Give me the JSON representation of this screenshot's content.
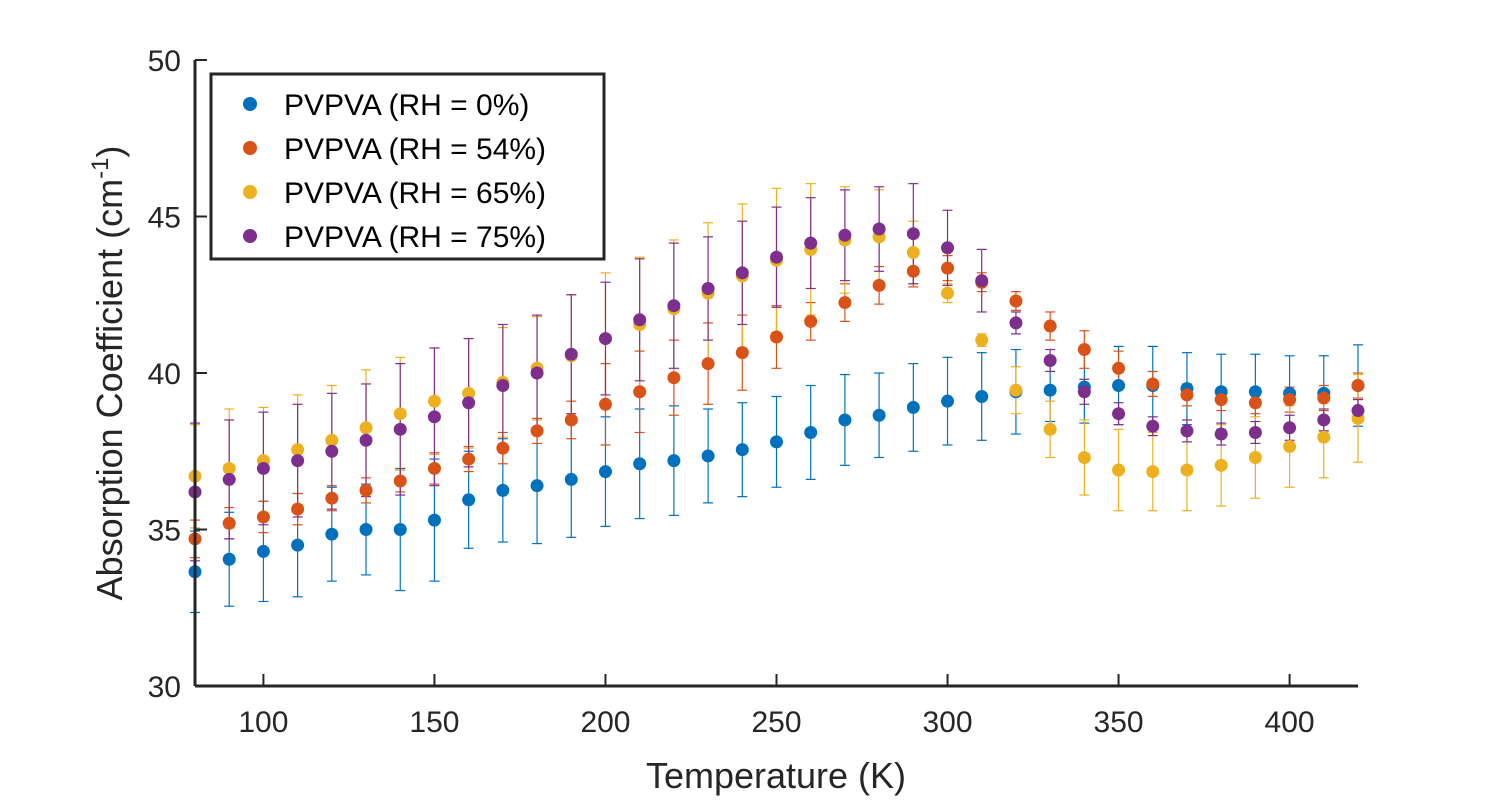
{
  "chart_data": {
    "type": "scatter",
    "xlabel": "Temperature (K)",
    "ylabel_main": "Absorption Coefficient (cm",
    "ylabel_sup": "-1",
    "ylabel_end": ")",
    "xlim": [
      80,
      420
    ],
    "ylim": [
      30,
      50
    ],
    "xticks": [
      100,
      150,
      200,
      250,
      300,
      350,
      400
    ],
    "yticks": [
      30,
      35,
      40,
      45,
      50
    ],
    "grid": false,
    "legend_position": "top-left",
    "x": [
      80,
      90,
      100,
      110,
      120,
      130,
      140,
      150,
      160,
      170,
      180,
      190,
      200,
      210,
      220,
      230,
      240,
      250,
      260,
      270,
      280,
      290,
      300,
      310,
      320,
      330,
      340,
      350,
      360,
      370,
      380,
      390,
      400,
      410,
      420
    ],
    "series": [
      {
        "name": "PVPVA (RH = 0%)",
        "color": "#0072BD",
        "values": [
          33.65,
          34.05,
          34.3,
          34.5,
          34.85,
          35.0,
          35.0,
          35.3,
          35.95,
          36.25,
          36.4,
          36.6,
          36.85,
          37.1,
          37.2,
          37.35,
          37.55,
          37.8,
          38.1,
          38.5,
          38.65,
          38.9,
          39.1,
          39.25,
          39.4,
          39.45,
          39.55,
          39.6,
          39.6,
          39.5,
          39.4,
          39.4,
          39.35,
          39.35,
          39.6
        ],
        "errors": [
          1.3,
          1.5,
          1.6,
          1.65,
          1.5,
          1.45,
          1.95,
          1.95,
          1.55,
          1.65,
          1.85,
          1.85,
          1.75,
          1.75,
          1.75,
          1.5,
          1.5,
          1.45,
          1.5,
          1.45,
          1.35,
          1.4,
          1.4,
          1.4,
          1.35,
          1.0,
          1.15,
          1.25,
          1.25,
          1.15,
          1.2,
          1.2,
          1.2,
          1.2,
          1.3
        ]
      },
      {
        "name": "PVPVA (RH = 54%)",
        "color": "#D95319",
        "values": [
          34.7,
          35.2,
          35.4,
          35.65,
          36.0,
          36.25,
          36.55,
          36.95,
          37.25,
          37.6,
          38.15,
          38.5,
          39.0,
          39.4,
          39.85,
          40.3,
          40.65,
          41.15,
          41.65,
          42.25,
          42.8,
          43.25,
          43.35,
          42.9,
          42.3,
          41.5,
          40.75,
          40.15,
          39.65,
          39.3,
          39.15,
          39.05,
          39.15,
          39.2,
          39.6
        ],
        "errors": [
          0.6,
          0.5,
          0.5,
          0.5,
          0.4,
          0.4,
          0.35,
          0.5,
          0.4,
          0.5,
          0.4,
          0.6,
          1.3,
          1.3,
          1.2,
          1.3,
          1.2,
          1.0,
          0.6,
          0.6,
          0.6,
          0.5,
          0.4,
          0.3,
          0.3,
          0.45,
          0.6,
          0.55,
          0.4,
          0.35,
          0.35,
          0.35,
          0.4,
          0.4,
          0.4
        ]
      },
      {
        "name": "PVPVA (RH = 65%)",
        "color": "#EDB120",
        "values": [
          36.7,
          36.95,
          37.2,
          37.55,
          37.85,
          38.25,
          38.7,
          39.1,
          39.35,
          39.7,
          40.15,
          40.55,
          41.1,
          41.55,
          42.05,
          42.55,
          43.1,
          43.6,
          43.95,
          44.25,
          44.35,
          43.85,
          42.55,
          41.05,
          39.45,
          38.2,
          37.3,
          36.9,
          36.85,
          36.9,
          37.05,
          37.3,
          37.65,
          37.95,
          38.55
        ],
        "errors": [
          1.65,
          1.9,
          1.7,
          1.75,
          1.75,
          1.85,
          1.8,
          1.7,
          1.75,
          1.75,
          1.65,
          1.95,
          2.1,
          2.15,
          2.2,
          2.25,
          2.3,
          2.3,
          2.1,
          1.7,
          1.5,
          1.0,
          0.3,
          0.2,
          0.75,
          0.9,
          1.2,
          1.3,
          1.25,
          1.3,
          1.3,
          1.3,
          1.3,
          1.3,
          1.4
        ]
      },
      {
        "name": "PVPVA (RH = 75%)",
        "color": "#7E2F8E",
        "values": [
          36.2,
          36.6,
          36.95,
          37.2,
          37.5,
          37.85,
          38.2,
          38.6,
          39.05,
          39.6,
          40.0,
          40.6,
          41.1,
          41.7,
          42.15,
          42.7,
          43.2,
          43.7,
          44.15,
          44.4,
          44.6,
          44.45,
          44.0,
          42.95,
          41.6,
          40.4,
          39.4,
          38.7,
          38.3,
          38.15,
          38.05,
          38.1,
          38.25,
          38.5,
          38.8
        ],
        "errors": [
          2.2,
          1.9,
          1.8,
          1.8,
          1.85,
          1.8,
          2.1,
          2.2,
          2.05,
          1.95,
          1.85,
          1.9,
          1.8,
          1.95,
          2.0,
          1.65,
          1.65,
          1.6,
          1.45,
          1.45,
          1.35,
          1.6,
          1.2,
          1.0,
          0.35,
          0.35,
          0.4,
          0.35,
          0.3,
          0.35,
          0.35,
          0.35,
          0.4,
          0.35,
          0.35
        ]
      }
    ]
  }
}
